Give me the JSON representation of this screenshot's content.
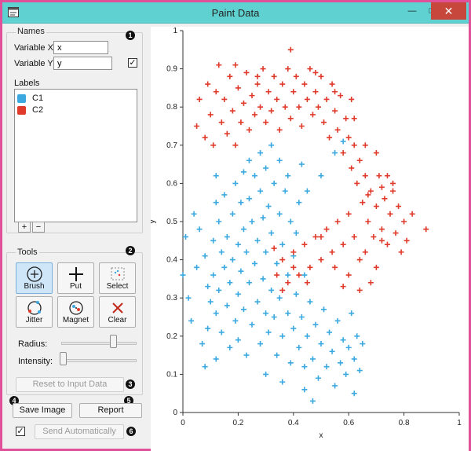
{
  "window": {
    "title": "Paint Data",
    "buttons": {
      "minimize": "—",
      "maximize": "□",
      "close": "✕"
    }
  },
  "names": {
    "group_title": "Names",
    "badge": "1",
    "variable_x_label": "Variable X:",
    "variable_x_value": "x",
    "variable_y_label": "Variable Y:",
    "variable_y_value": "y",
    "y_checked": "✓"
  },
  "labels": {
    "title": "Labels",
    "items": [
      {
        "name": "C1",
        "color": "#3ba9e0"
      },
      {
        "name": "C2",
        "color": "#e03a2a"
      }
    ],
    "add": "+",
    "remove": "−"
  },
  "tools": {
    "group_title": "Tools",
    "badge": "2",
    "buttons": [
      {
        "label": "Brush",
        "icon": "brush-icon",
        "active": true
      },
      {
        "label": "Put",
        "icon": "put-icon",
        "active": false
      },
      {
        "label": "Select",
        "icon": "select-icon",
        "active": false
      },
      {
        "label": "Jitter",
        "icon": "jitter-icon",
        "active": false
      },
      {
        "label": "Magnet",
        "icon": "magnet-icon",
        "active": false
      },
      {
        "label": "Clear",
        "icon": "clear-icon",
        "active": false
      }
    ],
    "radius_label": "Radius:",
    "radius_level": 0.7,
    "intensity_label": "Intensity:",
    "intensity_level": 0.03
  },
  "reset": {
    "label": "Reset to Input Data",
    "badge": "3"
  },
  "bottom": {
    "save_badge": "4",
    "save_label": "Save Image",
    "report_badge": "5",
    "report_label": "Report",
    "auto_checked": "✓",
    "auto_label": "Send Automatically",
    "auto_badge": "6"
  },
  "colors": {
    "accent_border": "#e0519a",
    "titlebar": "#5fd1d0",
    "c1": "#3ba9e0",
    "c2": "#e03a2a"
  },
  "chart_data": {
    "type": "scatter",
    "xlabel": "x",
    "ylabel": "y",
    "xlim": [
      0,
      1
    ],
    "ylim": [
      0,
      1
    ],
    "xticks": [
      "0",
      "0.2",
      "0.4",
      "0.6",
      "0.8",
      "1"
    ],
    "yticks": [
      "0",
      "0.1",
      "0.2",
      "0.3",
      "0.4",
      "0.5",
      "0.6",
      "0.7",
      "0.8",
      "0.9",
      "1"
    ],
    "series": [
      {
        "name": "C1",
        "color": "#3ba9e0",
        "points": [
          [
            0.01,
            0.46
          ],
          [
            0.0,
            0.36
          ],
          [
            0.02,
            0.3
          ],
          [
            0.03,
            0.24
          ],
          [
            0.04,
            0.52
          ],
          [
            0.05,
            0.38
          ],
          [
            0.06,
            0.48
          ],
          [
            0.07,
            0.18
          ],
          [
            0.08,
            0.12
          ],
          [
            0.08,
            0.41
          ],
          [
            0.09,
            0.33
          ],
          [
            0.09,
            0.22
          ],
          [
            0.1,
            0.29
          ],
          [
            0.11,
            0.45
          ],
          [
            0.11,
            0.36
          ],
          [
            0.12,
            0.14
          ],
          [
            0.12,
            0.26
          ],
          [
            0.12,
            0.55
          ],
          [
            0.13,
            0.32
          ],
          [
            0.13,
            0.5
          ],
          [
            0.14,
            0.42
          ],
          [
            0.14,
            0.21
          ],
          [
            0.15,
            0.38
          ],
          [
            0.15,
            0.57
          ],
          [
            0.16,
            0.28
          ],
          [
            0.16,
            0.46
          ],
          [
            0.17,
            0.17
          ],
          [
            0.17,
            0.34
          ],
          [
            0.18,
            0.52
          ],
          [
            0.18,
            0.4
          ],
          [
            0.19,
            0.24
          ],
          [
            0.19,
            0.6
          ],
          [
            0.2,
            0.44
          ],
          [
            0.2,
            0.31
          ],
          [
            0.2,
            0.19
          ],
          [
            0.21,
            0.55
          ],
          [
            0.21,
            0.37
          ],
          [
            0.22,
            0.48
          ],
          [
            0.22,
            0.27
          ],
          [
            0.22,
            0.63
          ],
          [
            0.23,
            0.42
          ],
          [
            0.23,
            0.15
          ],
          [
            0.24,
            0.34
          ],
          [
            0.24,
            0.56
          ],
          [
            0.25,
            0.23
          ],
          [
            0.25,
            0.5
          ],
          [
            0.26,
            0.39
          ],
          [
            0.26,
            0.62
          ],
          [
            0.27,
            0.29
          ],
          [
            0.27,
            0.45
          ],
          [
            0.28,
            0.18
          ],
          [
            0.28,
            0.58
          ],
          [
            0.29,
            0.35
          ],
          [
            0.29,
            0.51
          ],
          [
            0.3,
            0.26
          ],
          [
            0.3,
            0.42
          ],
          [
            0.3,
            0.64
          ],
          [
            0.31,
            0.21
          ],
          [
            0.31,
            0.54
          ],
          [
            0.32,
            0.32
          ],
          [
            0.32,
            0.47
          ],
          [
            0.33,
            0.6
          ],
          [
            0.33,
            0.25
          ],
          [
            0.34,
            0.39
          ],
          [
            0.34,
            0.15
          ],
          [
            0.35,
            0.52
          ],
          [
            0.35,
            0.3
          ],
          [
            0.36,
            0.44
          ],
          [
            0.36,
            0.2
          ],
          [
            0.37,
            0.58
          ],
          [
            0.38,
            0.36
          ],
          [
            0.38,
            0.26
          ],
          [
            0.39,
            0.5
          ],
          [
            0.39,
            0.13
          ],
          [
            0.4,
            0.41
          ],
          [
            0.4,
            0.22
          ],
          [
            0.41,
            0.31
          ],
          [
            0.42,
            0.55
          ],
          [
            0.42,
            0.17
          ],
          [
            0.43,
            0.25
          ],
          [
            0.44,
            0.36
          ],
          [
            0.44,
            0.12
          ],
          [
            0.45,
            0.2
          ],
          [
            0.46,
            0.29
          ],
          [
            0.47,
            0.14
          ],
          [
            0.48,
            0.23
          ],
          [
            0.49,
            0.09
          ],
          [
            0.5,
            0.18
          ],
          [
            0.51,
            0.27
          ],
          [
            0.52,
            0.12
          ],
          [
            0.53,
            0.21
          ],
          [
            0.54,
            0.16
          ],
          [
            0.55,
            0.07
          ],
          [
            0.56,
            0.24
          ],
          [
            0.57,
            0.13
          ],
          [
            0.58,
            0.19
          ],
          [
            0.59,
            0.1
          ],
          [
            0.6,
            0.17
          ],
          [
            0.61,
            0.26
          ],
          [
            0.62,
            0.14
          ],
          [
            0.63,
            0.2
          ],
          [
            0.64,
            0.11
          ],
          [
            0.65,
            0.18
          ],
          [
            0.35,
            0.66
          ],
          [
            0.28,
            0.68
          ],
          [
            0.32,
            0.7
          ],
          [
            0.38,
            0.62
          ],
          [
            0.43,
            0.65
          ],
          [
            0.5,
            0.62
          ],
          [
            0.55,
            0.68
          ],
          [
            0.58,
            0.71
          ],
          [
            0.45,
            0.58
          ],
          [
            0.41,
            0.47
          ],
          [
            0.24,
            0.66
          ],
          [
            0.12,
            0.62
          ],
          [
            0.47,
            0.03
          ],
          [
            0.44,
            0.06
          ],
          [
            0.62,
            0.05
          ],
          [
            0.36,
            0.08
          ],
          [
            0.3,
            0.1
          ]
        ]
      },
      {
        "name": "C2",
        "color": "#e03a2a",
        "points": [
          [
            0.05,
            0.75
          ],
          [
            0.06,
            0.82
          ],
          [
            0.08,
            0.72
          ],
          [
            0.09,
            0.86
          ],
          [
            0.1,
            0.78
          ],
          [
            0.11,
            0.7
          ],
          [
            0.12,
            0.84
          ],
          [
            0.13,
            0.91
          ],
          [
            0.14,
            0.76
          ],
          [
            0.15,
            0.82
          ],
          [
            0.16,
            0.73
          ],
          [
            0.17,
            0.88
          ],
          [
            0.18,
            0.79
          ],
          [
            0.19,
            0.7
          ],
          [
            0.2,
            0.85
          ],
          [
            0.21,
            0.76
          ],
          [
            0.22,
            0.81
          ],
          [
            0.23,
            0.89
          ],
          [
            0.24,
            0.74
          ],
          [
            0.25,
            0.83
          ],
          [
            0.26,
            0.78
          ],
          [
            0.27,
            0.86
          ],
          [
            0.28,
            0.8
          ],
          [
            0.29,
            0.9
          ],
          [
            0.3,
            0.76
          ],
          [
            0.31,
            0.84
          ],
          [
            0.32,
            0.79
          ],
          [
            0.33,
            0.88
          ],
          [
            0.34,
            0.82
          ],
          [
            0.35,
            0.74
          ],
          [
            0.36,
            0.86
          ],
          [
            0.37,
            0.8
          ],
          [
            0.38,
            0.9
          ],
          [
            0.39,
            0.77
          ],
          [
            0.4,
            0.84
          ],
          [
            0.41,
            0.88
          ],
          [
            0.42,
            0.8
          ],
          [
            0.43,
            0.75
          ],
          [
            0.44,
            0.86
          ],
          [
            0.45,
            0.82
          ],
          [
            0.46,
            0.9
          ],
          [
            0.47,
            0.78
          ],
          [
            0.48,
            0.84
          ],
          [
            0.49,
            0.8
          ],
          [
            0.5,
            0.88
          ],
          [
            0.51,
            0.76
          ],
          [
            0.52,
            0.82
          ],
          [
            0.53,
            0.72
          ],
          [
            0.54,
            0.86
          ],
          [
            0.55,
            0.79
          ],
          [
            0.56,
            0.74
          ],
          [
            0.57,
            0.83
          ],
          [
            0.58,
            0.68
          ],
          [
            0.59,
            0.77
          ],
          [
            0.6,
            0.72
          ],
          [
            0.61,
            0.64
          ],
          [
            0.62,
            0.7
          ],
          [
            0.63,
            0.6
          ],
          [
            0.64,
            0.66
          ],
          [
            0.65,
            0.55
          ],
          [
            0.66,
            0.62
          ],
          [
            0.67,
            0.5
          ],
          [
            0.68,
            0.58
          ],
          [
            0.69,
            0.46
          ],
          [
            0.7,
            0.54
          ],
          [
            0.71,
            0.62
          ],
          [
            0.72,
            0.48
          ],
          [
            0.73,
            0.56
          ],
          [
            0.74,
            0.44
          ],
          [
            0.75,
            0.52
          ],
          [
            0.76,
            0.6
          ],
          [
            0.77,
            0.47
          ],
          [
            0.78,
            0.54
          ],
          [
            0.79,
            0.42
          ],
          [
            0.8,
            0.5
          ],
          [
            0.81,
            0.45
          ],
          [
            0.83,
            0.52
          ],
          [
            0.88,
            0.48
          ],
          [
            0.62,
            0.46
          ],
          [
            0.64,
            0.4
          ],
          [
            0.6,
            0.52
          ],
          [
            0.58,
            0.44
          ],
          [
            0.56,
            0.5
          ],
          [
            0.54,
            0.42
          ],
          [
            0.52,
            0.48
          ],
          [
            0.5,
            0.4
          ],
          [
            0.48,
            0.46
          ],
          [
            0.46,
            0.38
          ],
          [
            0.44,
            0.44
          ],
          [
            0.42,
            0.36
          ],
          [
            0.4,
            0.42
          ],
          [
            0.38,
            0.34
          ],
          [
            0.36,
            0.4
          ],
          [
            0.34,
            0.36
          ],
          [
            0.33,
            0.43
          ],
          [
            0.36,
            0.32
          ],
          [
            0.4,
            0.38
          ],
          [
            0.45,
            0.34
          ],
          [
            0.5,
            0.46
          ],
          [
            0.55,
            0.38
          ],
          [
            0.6,
            0.36
          ],
          [
            0.66,
            0.42
          ],
          [
            0.7,
            0.38
          ],
          [
            0.72,
            0.45
          ],
          [
            0.68,
            0.34
          ],
          [
            0.64,
            0.32
          ],
          [
            0.58,
            0.33
          ],
          [
            0.74,
            0.62
          ],
          [
            0.7,
            0.68
          ],
          [
            0.66,
            0.7
          ],
          [
            0.39,
            0.95
          ],
          [
            0.27,
            0.88
          ],
          [
            0.19,
            0.91
          ],
          [
            0.48,
            0.89
          ],
          [
            0.55,
            0.84
          ],
          [
            0.62,
            0.77
          ],
          [
            0.61,
            0.82
          ],
          [
            0.76,
            0.58
          ],
          [
            0.72,
            0.59
          ],
          [
            0.67,
            0.57
          ]
        ]
      }
    ]
  }
}
